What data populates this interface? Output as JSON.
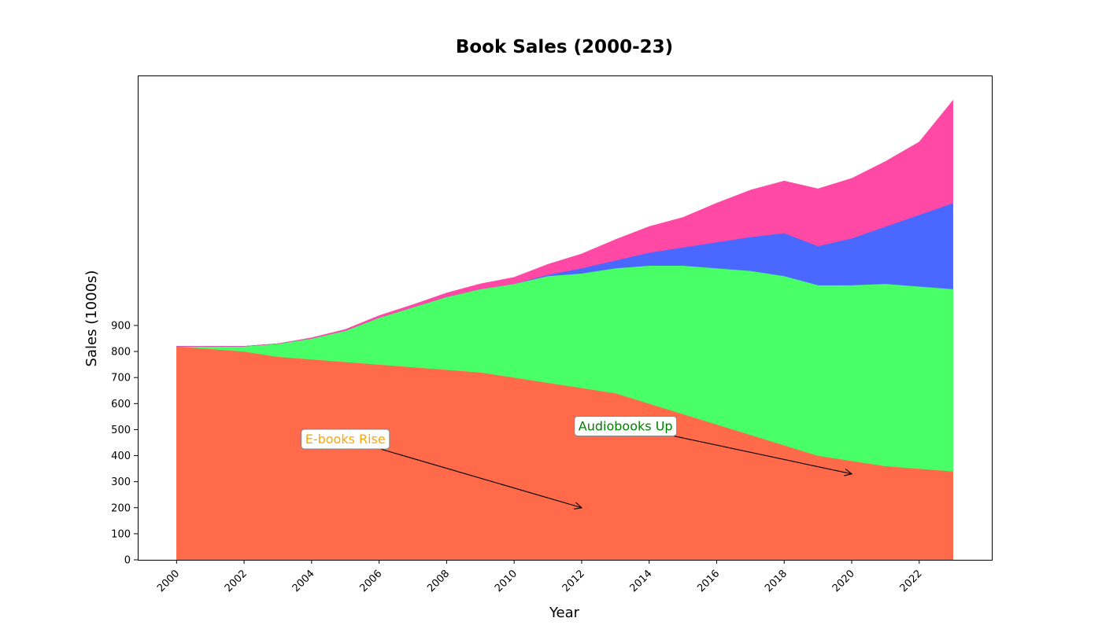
{
  "chart_data": {
    "type": "area",
    "stacked": true,
    "title": "Book Sales (2000-23)",
    "xlabel": "Year",
    "ylabel": "Sales (1000s)",
    "x": [
      2000,
      2001,
      2002,
      2003,
      2004,
      2005,
      2006,
      2007,
      2008,
      2009,
      2010,
      2011,
      2012,
      2013,
      2014,
      2015,
      2016,
      2017,
      2018,
      2019,
      2020,
      2021,
      2022,
      2023
    ],
    "xticks": [
      2000,
      2002,
      2004,
      2006,
      2008,
      2010,
      2012,
      2014,
      2016,
      2018,
      2020,
      2022
    ],
    "yticks": [
      0,
      100,
      200,
      300,
      400,
      500,
      600,
      700,
      800,
      900
    ],
    "xlim": [
      1998.85,
      2024.15
    ],
    "ylim": [
      0,
      1860
    ],
    "grid": false,
    "series": [
      {
        "color": "#ff6a4a",
        "values": [
          820,
          810,
          800,
          780,
          770,
          760,
          750,
          740,
          730,
          720,
          700,
          680,
          660,
          640,
          600,
          560,
          520,
          480,
          440,
          400,
          380,
          360,
          350,
          340
        ]
      },
      {
        "color": "#49ff68",
        "values": [
          0,
          10,
          20,
          50,
          80,
          120,
          180,
          230,
          280,
          320,
          360,
          410,
          440,
          480,
          530,
          570,
          600,
          630,
          650,
          655,
          675,
          700,
          700,
          700
        ]
      },
      {
        "color": "#4a68ff",
        "values": [
          0,
          0,
          0,
          0,
          0,
          0,
          0,
          0,
          0,
          0,
          0,
          5,
          20,
          30,
          50,
          70,
          100,
          130,
          165,
          150,
          180,
          220,
          275,
          330
        ]
      },
      {
        "color": "#ff49a5",
        "values": [
          0,
          0,
          0,
          0,
          3,
          5,
          8,
          10,
          15,
          20,
          25,
          40,
          55,
          80,
          100,
          115,
          150,
          180,
          200,
          220,
          230,
          250,
          280,
          395
        ]
      }
    ],
    "annotations": [
      {
        "text": "E-books Rise",
        "color": "#ffa500",
        "text_at": [
          2005,
          465
        ],
        "arrow_to": [
          2012,
          200
        ]
      },
      {
        "text": "Audiobooks Up",
        "color": "#008000",
        "text_at": [
          2013.3,
          515
        ],
        "arrow_to": [
          2020,
          330
        ]
      }
    ]
  }
}
